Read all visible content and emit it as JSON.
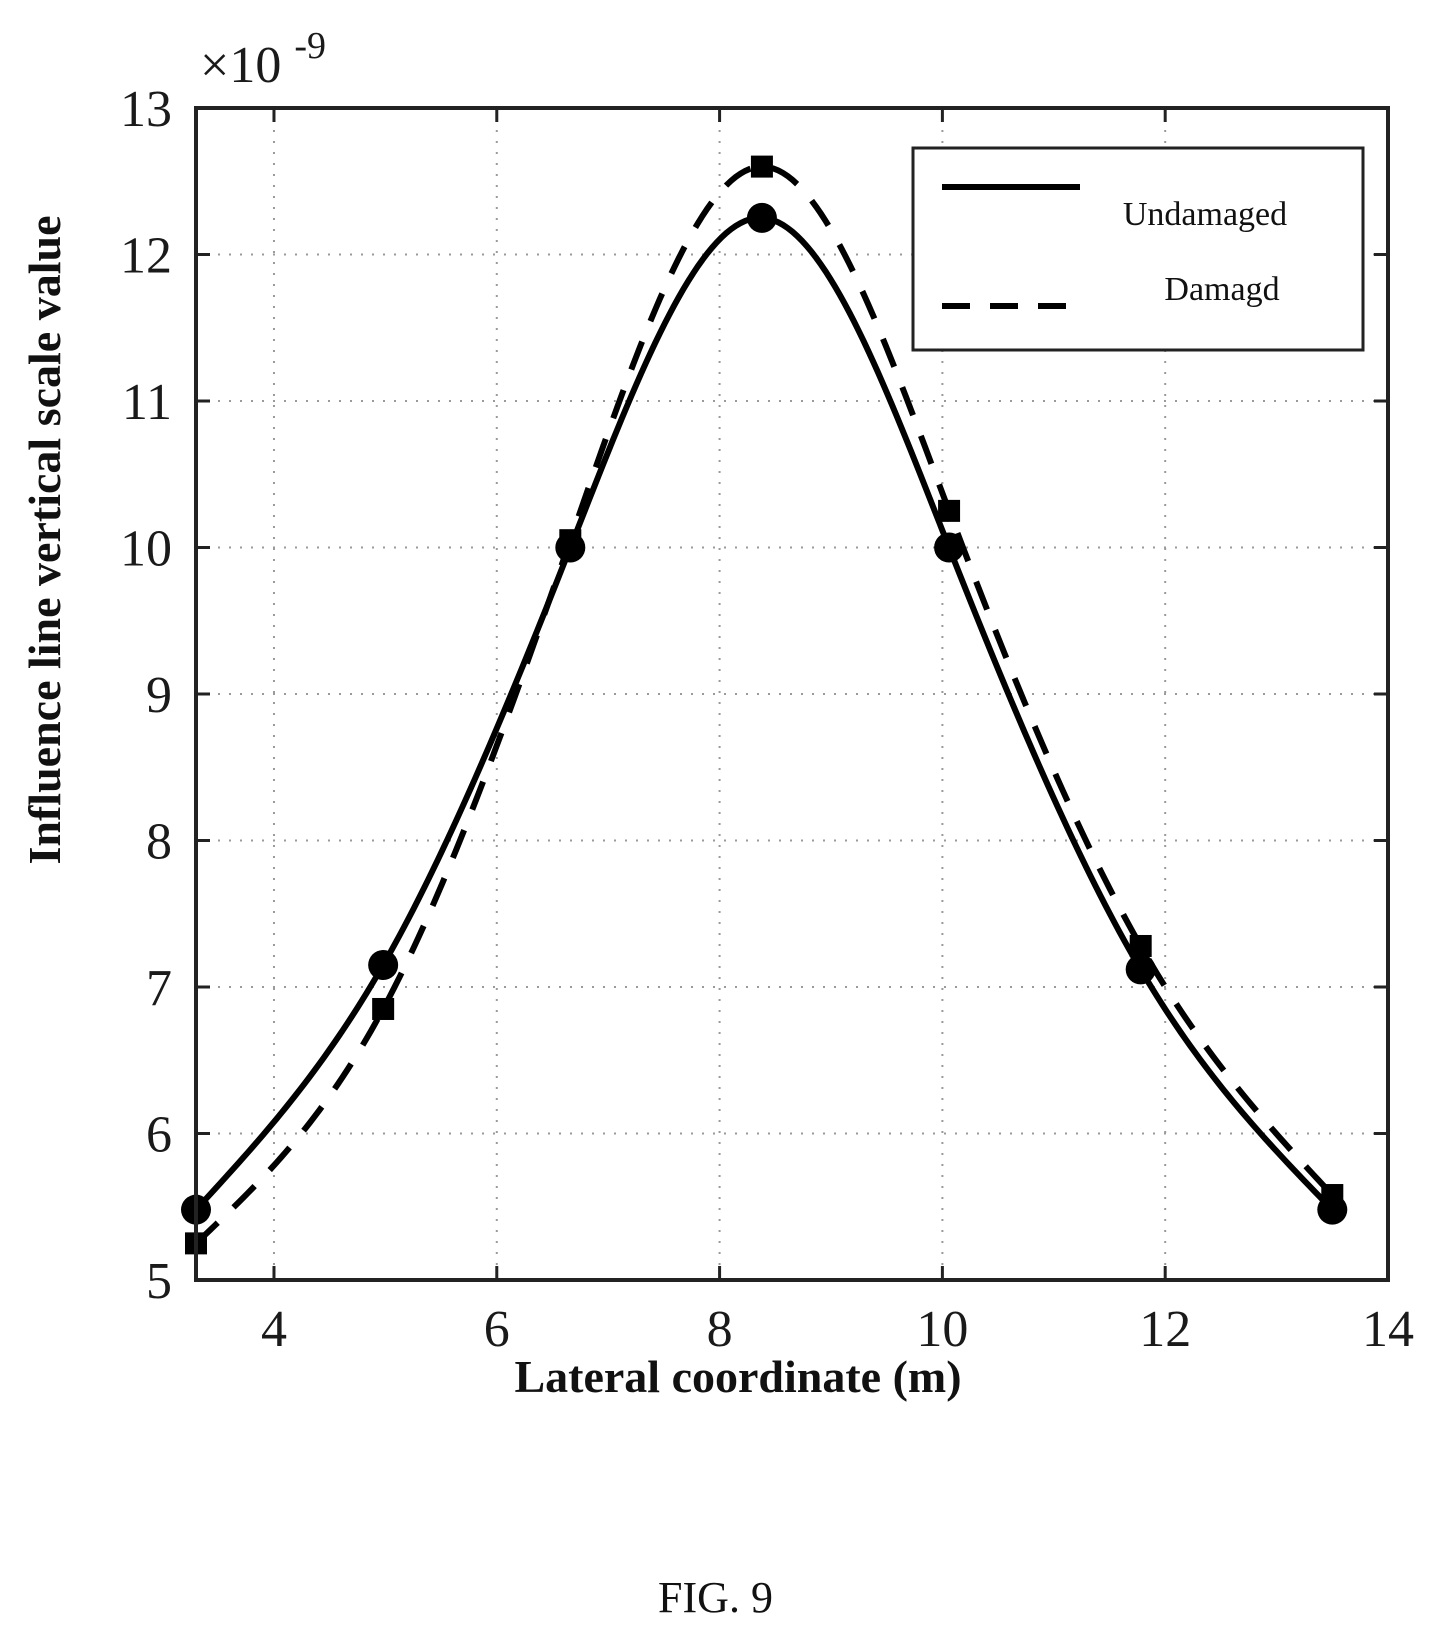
{
  "figure": {
    "caption": "FIG. 9"
  },
  "chart_data": {
    "type": "line",
    "title": "",
    "xlabel": "Lateral coordinate (m)",
    "ylabel": "Influence line vertical scale value",
    "y_exponent_label": "×10",
    "y_exponent_power": "-9",
    "xlim": [
      3.3,
      14
    ],
    "ylim": [
      5,
      13
    ],
    "xticks": [
      4,
      6,
      8,
      10,
      12,
      14
    ],
    "yticks": [
      5,
      6,
      7,
      8,
      9,
      10,
      11,
      12,
      13
    ],
    "grid": "dotted",
    "legend_position": "top-right",
    "series": [
      {
        "name": "Undamaged",
        "style": "solid",
        "marker": "circle",
        "color": "#000000",
        "x": [
          3.3,
          4.98,
          6.66,
          8.38,
          10.06,
          11.78,
          13.5
        ],
        "y": [
          5.48,
          7.15,
          10.0,
          12.25,
          10.0,
          7.12,
          5.48
        ]
      },
      {
        "name": "Damagd",
        "style": "dashed",
        "marker": "square",
        "color": "#000000",
        "x": [
          3.3,
          4.98,
          6.66,
          8.38,
          10.06,
          11.78,
          13.5
        ],
        "y": [
          5.25,
          6.85,
          10.05,
          12.6,
          10.25,
          7.28,
          5.58
        ]
      }
    ]
  }
}
